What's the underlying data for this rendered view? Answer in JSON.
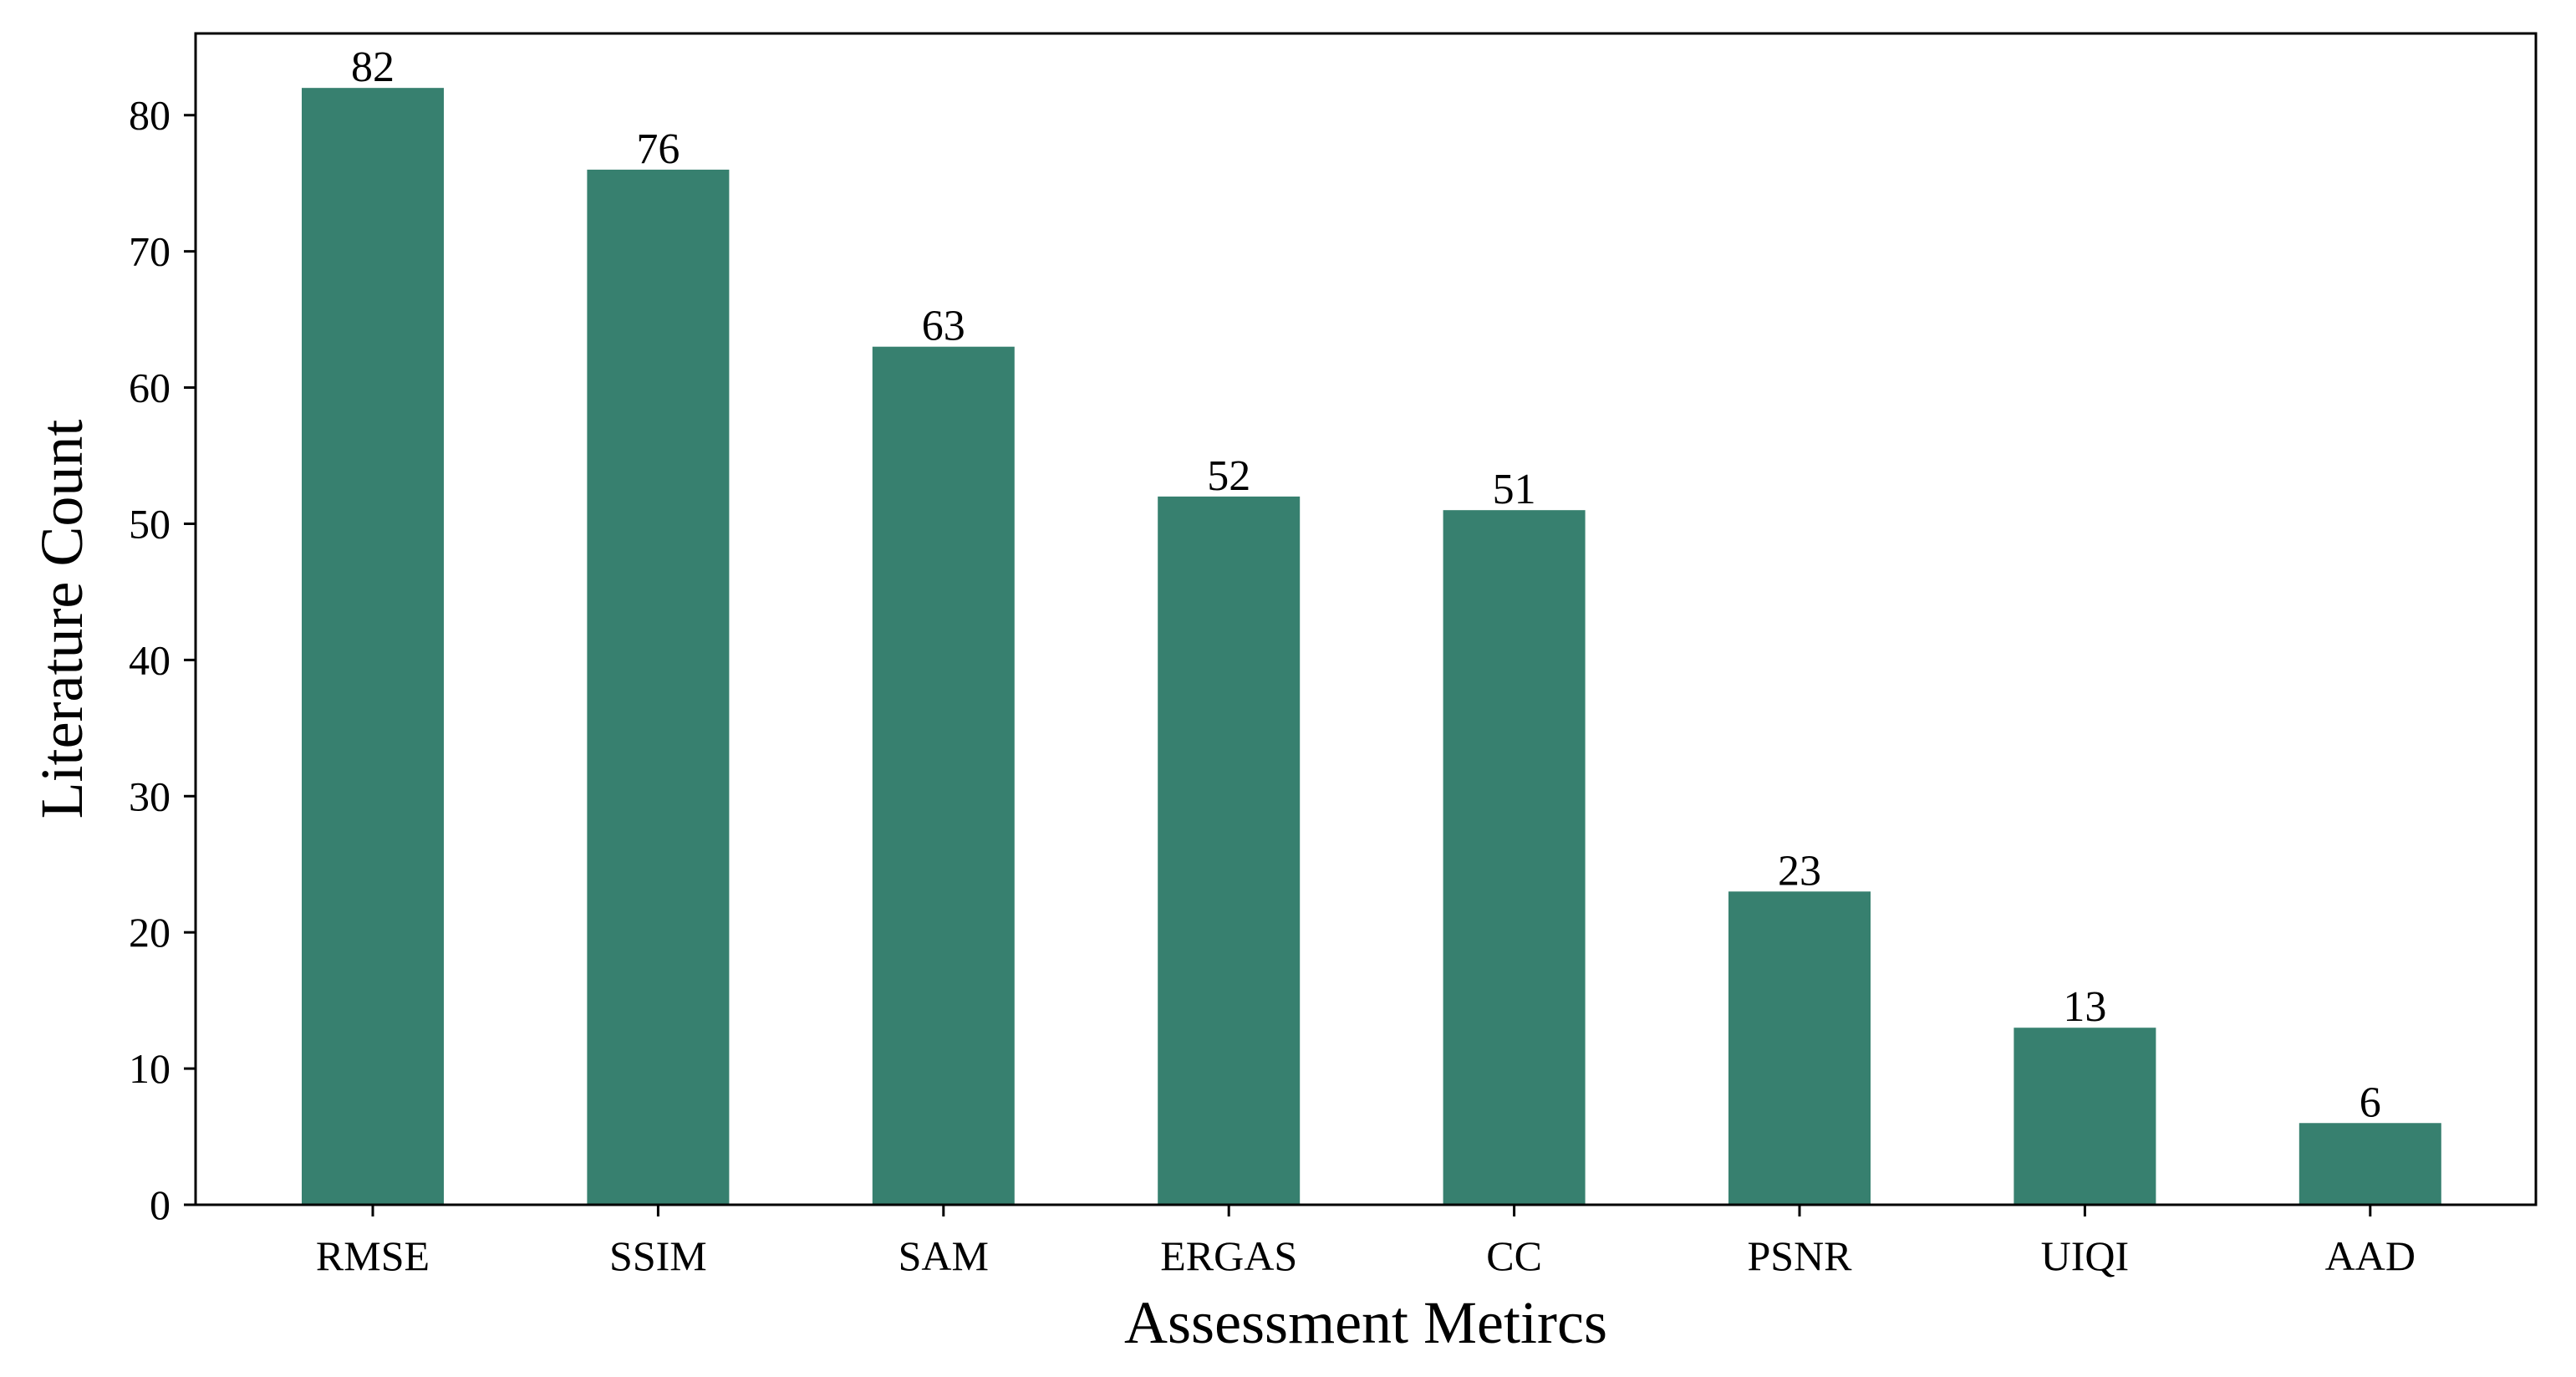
{
  "chart_data": {
    "type": "bar",
    "title": "",
    "xlabel": "Assessment Metircs",
    "ylabel": "Literature Count",
    "categories": [
      "RMSE",
      "SSIM",
      "SAM",
      "ERGAS",
      "CC",
      "PSNR",
      "UIQI",
      "AAD"
    ],
    "values": [
      82,
      76,
      63,
      52,
      51,
      23,
      13,
      6
    ],
    "data_labels": [
      "82",
      "76",
      "63",
      "52",
      "51",
      "23",
      "13",
      "6"
    ],
    "ylim": [
      0,
      86
    ],
    "yticks": [
      0,
      10,
      20,
      30,
      40,
      50,
      60,
      70,
      80
    ],
    "ytick_labels": [
      "0",
      "10",
      "20",
      "30",
      "40",
      "50",
      "60",
      "70",
      "80"
    ],
    "grid": false,
    "legend": "none",
    "bar_color": "#37806f",
    "axis_color": "#000000"
  }
}
